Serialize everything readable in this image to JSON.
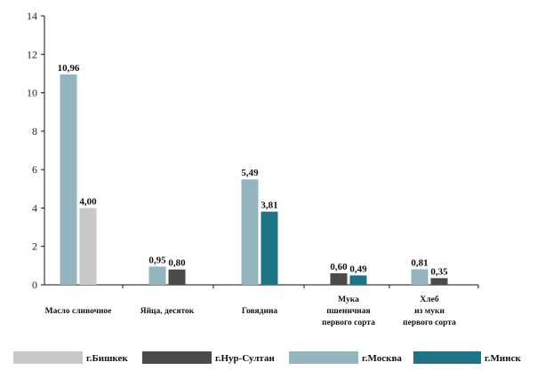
{
  "chart_data": {
    "type": "bar",
    "title": "",
    "xlabel": "",
    "ylabel": "",
    "ylim": [
      0,
      14
    ],
    "yticks": [
      0,
      2,
      4,
      6,
      8,
      10,
      12,
      14
    ],
    "grid": false,
    "legend_position": "bottom",
    "categories": [
      [
        "Масло сливочное"
      ],
      [
        "Яйца,  десяток"
      ],
      [
        "Говядина"
      ],
      [
        "Мука",
        "пшеничная",
        "первого сорта"
      ],
      [
        "Хлеб",
        "из муки",
        "первого сорта"
      ]
    ],
    "series": [
      {
        "name": "г.Бишкек",
        "color": "#c8c8c8",
        "values": [
          4.0,
          null,
          null,
          null,
          null
        ],
        "labels": [
          "4,00",
          null,
          null,
          null,
          null
        ]
      },
      {
        "name": "г.Нур-Султан",
        "color": "#4a4a4a",
        "values": [
          null,
          0.8,
          null,
          0.6,
          0.35
        ],
        "labels": [
          null,
          "0,80",
          null,
          "0,60",
          "0,35"
        ]
      },
      {
        "name": "г.Москва",
        "color": "#93b6be",
        "values": [
          10.96,
          0.95,
          5.49,
          null,
          0.81
        ],
        "labels": [
          "10,96",
          "0,95",
          "5,49",
          null,
          "0,81"
        ]
      },
      {
        "name": "г.Минск",
        "color": "#1f7386",
        "values": [
          null,
          null,
          3.81,
          0.49,
          null
        ],
        "labels": [
          null,
          null,
          "3,81",
          "0,49",
          null
        ]
      }
    ],
    "bars": [
      {
        "category": 0,
        "series": 2,
        "value": 10.96,
        "label": "10,96"
      },
      {
        "category": 0,
        "series": 0,
        "value": 4.0,
        "label": "4,00"
      },
      {
        "category": 1,
        "series": 2,
        "value": 0.95,
        "label": "0,95"
      },
      {
        "category": 1,
        "series": 1,
        "value": 0.8,
        "label": "0,80"
      },
      {
        "category": 2,
        "series": 2,
        "value": 5.49,
        "label": "5,49"
      },
      {
        "category": 2,
        "series": 3,
        "value": 3.81,
        "label": "3,81"
      },
      {
        "category": 3,
        "series": 1,
        "value": 0.6,
        "label": "0,60"
      },
      {
        "category": 3,
        "series": 3,
        "value": 0.49,
        "label": "0,49"
      },
      {
        "category": 4,
        "series": 2,
        "value": 0.81,
        "label": "0,81"
      },
      {
        "category": 4,
        "series": 1,
        "value": 0.35,
        "label": "0,35"
      }
    ]
  }
}
